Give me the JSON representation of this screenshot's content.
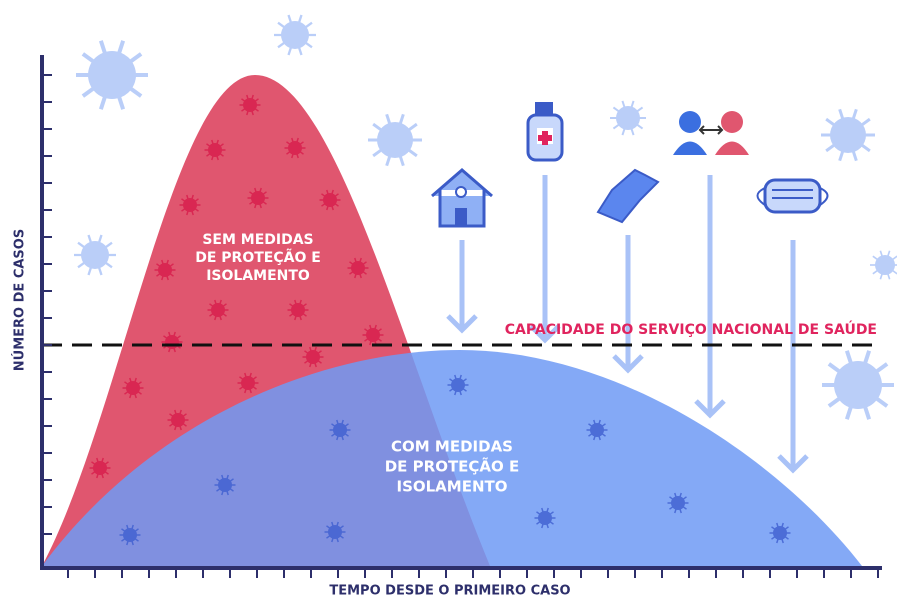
{
  "axes": {
    "y_label": "NÚMERO DE CASOS",
    "x_label": "TEMPO DESDE O PRIMEIRO CASO"
  },
  "curves": [
    {
      "label_lines": [
        "SEM MEDIDAS",
        "DE PROTEÇÃO E",
        "ISOLAMENTO"
      ]
    },
    {
      "label_lines": [
        "COM MEDIDAS",
        "DE PROTEÇÃO E",
        "ISOLAMENTO"
      ]
    }
  ],
  "capacity_label": "CAPACIDADE DO SERVIÇO NACIONAL DE SAÚDE"
}
